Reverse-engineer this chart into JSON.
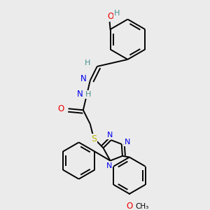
{
  "background_color": "#ebebeb",
  "atom_colors": {
    "C": "#000000",
    "H": "#4a9090",
    "N": "#0000ee",
    "O": "#ee0000",
    "S": "#b8b800"
  },
  "bond_color": "#000000",
  "bond_width": 1.4,
  "figsize": [
    3.0,
    3.0
  ],
  "dpi": 100
}
